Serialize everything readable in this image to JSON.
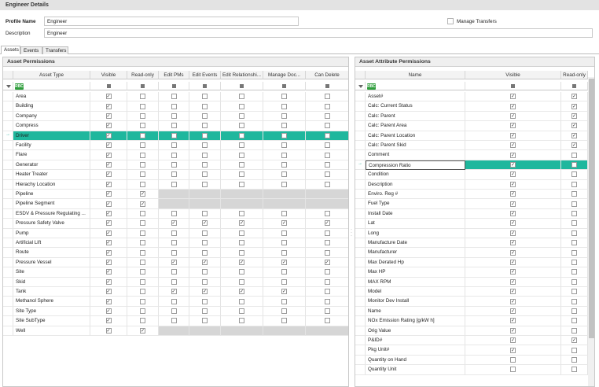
{
  "header": {
    "title": "Engineer Details"
  },
  "profile": {
    "name_label": "Profile Name",
    "name_value": "Engineer",
    "desc_label": "Description",
    "desc_value": "Engineer",
    "manage_transfers_label": "Manage Transfers"
  },
  "tabs": [
    {
      "label": "Assets"
    },
    {
      "label": "Events"
    },
    {
      "label": "Transfers"
    }
  ],
  "asset_permissions": {
    "title": "Asset Permissions",
    "columns": [
      "Asset Type",
      "Visible",
      "Read-only",
      "Edit PMs",
      "Edit Events",
      "Edit Relationshi...",
      "Manage Doc...",
      "Can Delete"
    ],
    "selected_row": "Driver",
    "rows": [
      {
        "name": "Area",
        "v": [
          1,
          0,
          0,
          0,
          0,
          0,
          0
        ]
      },
      {
        "name": "Building",
        "v": [
          1,
          0,
          0,
          0,
          0,
          0,
          0
        ]
      },
      {
        "name": "Company",
        "v": [
          1,
          0,
          0,
          0,
          0,
          0,
          0
        ]
      },
      {
        "name": "Compress",
        "v": [
          1,
          0,
          0,
          0,
          0,
          0,
          0
        ]
      },
      {
        "name": "Driver",
        "v": [
          1,
          0,
          0,
          0,
          0,
          0,
          0
        ]
      },
      {
        "name": "Facility",
        "v": [
          1,
          0,
          0,
          0,
          0,
          0,
          0
        ]
      },
      {
        "name": "Flare",
        "v": [
          1,
          0,
          0,
          0,
          0,
          0,
          0
        ]
      },
      {
        "name": "Generator",
        "v": [
          1,
          0,
          0,
          0,
          0,
          0,
          0
        ]
      },
      {
        "name": "Heater Treater",
        "v": [
          1,
          0,
          0,
          0,
          0,
          0,
          0
        ]
      },
      {
        "name": "Hierachy Location",
        "v": [
          1,
          0,
          0,
          0,
          0,
          0,
          0
        ]
      },
      {
        "name": "Pipeline",
        "v": [
          1,
          1,
          2,
          2,
          2,
          2,
          2
        ]
      },
      {
        "name": "Pipeline Segment",
        "v": [
          1,
          1,
          2,
          2,
          2,
          2,
          2
        ]
      },
      {
        "name": "ESDV & Pressure Regulating ...",
        "v": [
          1,
          0,
          0,
          0,
          0,
          0,
          0
        ]
      },
      {
        "name": "Pressure Safety Valve",
        "v": [
          1,
          0,
          1,
          1,
          1,
          1,
          1
        ]
      },
      {
        "name": "Pump",
        "v": [
          1,
          0,
          0,
          0,
          0,
          0,
          0
        ]
      },
      {
        "name": "Artificial Lift",
        "v": [
          1,
          0,
          0,
          0,
          0,
          0,
          0
        ]
      },
      {
        "name": "Route",
        "v": [
          1,
          0,
          0,
          0,
          0,
          0,
          0
        ]
      },
      {
        "name": "Pressure Vessel",
        "v": [
          1,
          0,
          1,
          1,
          1,
          1,
          1
        ]
      },
      {
        "name": "Site",
        "v": [
          1,
          0,
          0,
          0,
          0,
          0,
          0
        ]
      },
      {
        "name": "Skid",
        "v": [
          1,
          0,
          0,
          0,
          0,
          0,
          0
        ]
      },
      {
        "name": "Tank",
        "v": [
          1,
          0,
          1,
          1,
          1,
          1,
          0
        ]
      },
      {
        "name": "Methanol Sphere",
        "v": [
          1,
          0,
          0,
          0,
          0,
          0,
          0
        ]
      },
      {
        "name": "Site Type",
        "v": [
          1,
          0,
          0,
          0,
          0,
          0,
          0
        ]
      },
      {
        "name": "Site SubType",
        "v": [
          1,
          0,
          0,
          0,
          0,
          0,
          0
        ]
      },
      {
        "name": "Well",
        "v": [
          1,
          1,
          2,
          2,
          2,
          2,
          2
        ]
      }
    ]
  },
  "attr_permissions": {
    "title": "Asset Attribute Permissions",
    "columns": [
      "Name",
      "Visible",
      "Read-only"
    ],
    "selected_row": "Compression Ratio",
    "rows": [
      {
        "name": "Asset#",
        "v": [
          1,
          1
        ]
      },
      {
        "name": "Calc: Current Status",
        "v": [
          1,
          1
        ]
      },
      {
        "name": "Calc: Parent",
        "v": [
          1,
          1
        ]
      },
      {
        "name": "Calc: Parent Area",
        "v": [
          1,
          1
        ]
      },
      {
        "name": "Calc: Parent Location",
        "v": [
          1,
          1
        ]
      },
      {
        "name": "Calc: Parent Skid",
        "v": [
          1,
          1
        ]
      },
      {
        "name": "Comment",
        "v": [
          1,
          0
        ]
      },
      {
        "name": "Compression Ratio",
        "v": [
          1,
          0
        ]
      },
      {
        "name": "Condition",
        "v": [
          1,
          0
        ]
      },
      {
        "name": "Description",
        "v": [
          1,
          0
        ]
      },
      {
        "name": "Enviro. Reg #",
        "v": [
          1,
          0
        ]
      },
      {
        "name": "Fuel Type",
        "v": [
          1,
          0
        ]
      },
      {
        "name": "Install Date",
        "v": [
          1,
          0
        ]
      },
      {
        "name": "Lat",
        "v": [
          1,
          0
        ]
      },
      {
        "name": "Long",
        "v": [
          1,
          0
        ]
      },
      {
        "name": "Manufacture Date",
        "v": [
          1,
          0
        ]
      },
      {
        "name": "Manufacturer",
        "v": [
          1,
          0
        ]
      },
      {
        "name": "Max Derated Hp",
        "v": [
          1,
          0
        ]
      },
      {
        "name": "Max HP",
        "v": [
          1,
          0
        ]
      },
      {
        "name": "MAX RPM",
        "v": [
          1,
          0
        ]
      },
      {
        "name": "Model",
        "v": [
          1,
          0
        ]
      },
      {
        "name": "Monitor Dev Install",
        "v": [
          1,
          0
        ]
      },
      {
        "name": "Name",
        "v": [
          1,
          0
        ]
      },
      {
        "name": "NOx Emission Rating [g/kW h]",
        "v": [
          1,
          0
        ]
      },
      {
        "name": "Orig Value",
        "v": [
          1,
          0
        ]
      },
      {
        "name": "P&ID#",
        "v": [
          1,
          1
        ]
      },
      {
        "name": "Pkg Unit#",
        "v": [
          1,
          0
        ]
      },
      {
        "name": "Quantity on Hand",
        "v": [
          0,
          0
        ]
      },
      {
        "name": "Quantity Unit",
        "v": [
          0,
          0
        ]
      }
    ]
  },
  "icons": {
    "filter": "funnel-icon",
    "row_indicator": "arrow-right-icon",
    "filter_builder": "rbc-icon",
    "check": "✓",
    "arrow": "→",
    "accent": "#1fb79d"
  }
}
